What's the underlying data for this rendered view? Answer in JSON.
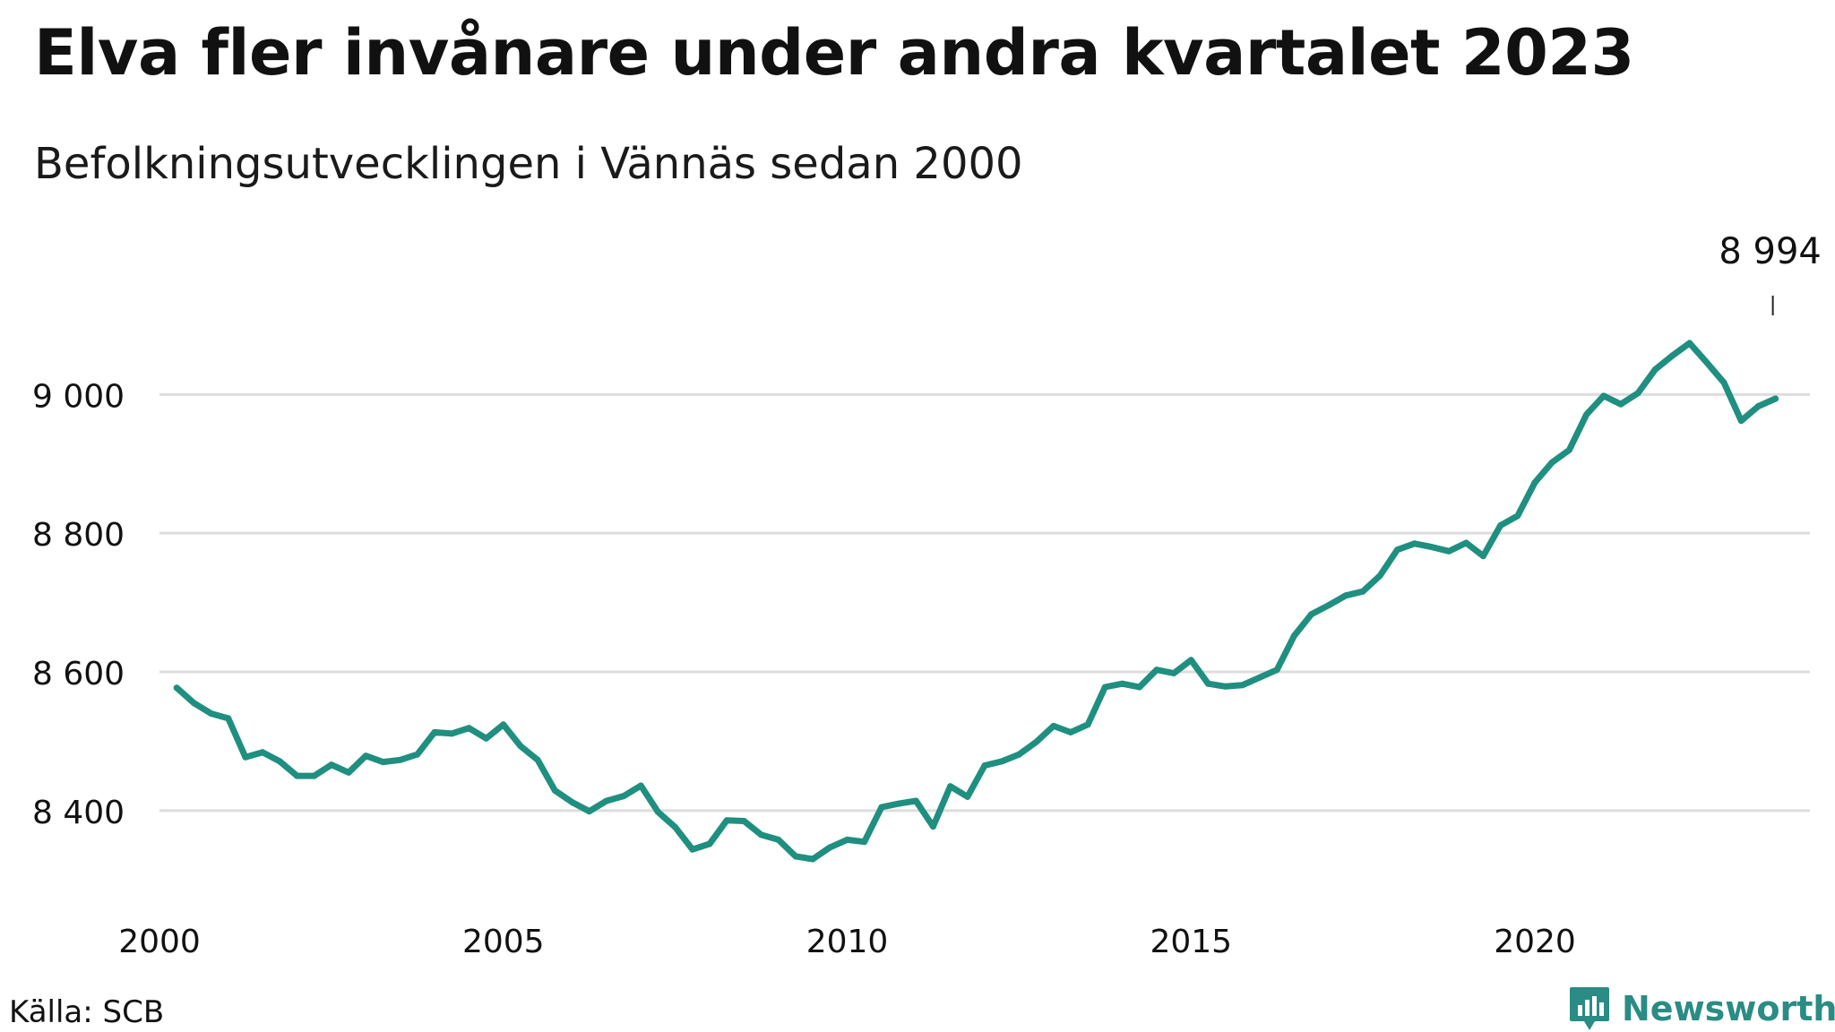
{
  "title": "Elva fler invånare under andra kvartalet 2023",
  "subtitle": "Befolkningsutvecklingen i Vännäs sedan 2000",
  "source": "Källa: SCB",
  "brand": {
    "name": "Newsworthy",
    "color": "#2a8c84"
  },
  "chart_data": {
    "type": "line",
    "x_ticks": [
      "2000",
      "2005",
      "2010",
      "2015",
      "2020"
    ],
    "y_ticks": [
      "8 400",
      "8 600",
      "8 800",
      "9 000"
    ],
    "ylim": [
      8290,
      9220
    ],
    "xlim": [
      2000.0,
      2024.0
    ],
    "grid": "horizontal",
    "line_color": "#1f8f80",
    "end_label": "8 994",
    "series": [
      {
        "x": [
          2000.25,
          2000.5,
          2000.75,
          2001.0,
          2001.25,
          2001.5,
          2001.75,
          2002.0,
          2002.25,
          2002.5,
          2002.75,
          2003.0,
          2003.25,
          2003.5,
          2003.75,
          2004.0,
          2004.25,
          2004.5,
          2004.75,
          2005.0,
          2005.25,
          2005.5,
          2005.75,
          2006.0,
          2006.25,
          2006.5,
          2006.75,
          2007.0,
          2007.25,
          2007.5,
          2007.75,
          2008.0,
          2008.25,
          2008.5,
          2008.75,
          2009.0,
          2009.25,
          2009.5,
          2009.75,
          2010.0,
          2010.25,
          2010.5,
          2010.75,
          2011.0,
          2011.25,
          2011.5,
          2011.75,
          2012.0,
          2012.25,
          2012.5,
          2012.75,
          2013.0,
          2013.25,
          2013.5,
          2013.75,
          2014.0,
          2014.25,
          2014.5,
          2014.75,
          2015.0,
          2015.25,
          2015.5,
          2015.75,
          2016.0,
          2016.25,
          2016.5,
          2016.75,
          2017.0,
          2017.25,
          2017.5,
          2017.75,
          2018.0,
          2018.25,
          2018.5,
          2018.75,
          2019.0,
          2019.25,
          2019.5,
          2019.75,
          2020.0,
          2020.25,
          2020.5,
          2020.75,
          2021.0,
          2021.25,
          2021.5,
          2021.75,
          2022.0,
          2022.25,
          2022.5,
          2022.75,
          2023.0,
          2023.25,
          2023.5
        ],
        "y": [
          8577,
          8555,
          8540,
          8533,
          8477,
          8484,
          8471,
          8450,
          8450,
          8466,
          8455,
          8479,
          8470,
          8473,
          8481,
          8513,
          8511,
          8519,
          8504,
          8524,
          8493,
          8473,
          8429,
          8412,
          8399,
          8414,
          8421,
          8436,
          8398,
          8376,
          8344,
          8352,
          8386,
          8385,
          8365,
          8358,
          8334,
          8330,
          8347,
          8358,
          8355,
          8405,
          8410,
          8414,
          8377,
          8435,
          8420,
          8465,
          8471,
          8481,
          8499,
          8522,
          8513,
          8524,
          8578,
          8583,
          8578,
          8603,
          8598,
          8617,
          8583,
          8579,
          8581,
          8592,
          8603,
          8652,
          8683,
          8696,
          8710,
          8716,
          8739,
          8776,
          8785,
          8780,
          8774,
          8786,
          8767,
          8811,
          8825,
          8873,
          8902,
          8920,
          8971,
          8998,
          8986,
          9002,
          9036,
          9056,
          9074,
          9046,
          9017,
          8962,
          8983,
          8994
        ]
      }
    ]
  }
}
